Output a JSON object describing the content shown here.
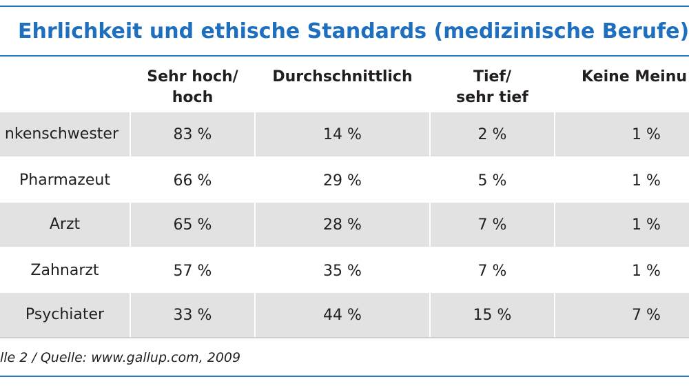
{
  "title": "Ehrlichkeit und ethische Standards (medizinische Berufe)",
  "table": {
    "columns": [
      "Sehr hoch/\nhoch",
      "Durchschnittlich",
      "Tief/\nsehr tief",
      "Keine Meinu"
    ],
    "rows": [
      {
        "label": "nkenschwester",
        "values": [
          "83 %",
          "14 %",
          "2 %",
          "1 %"
        ]
      },
      {
        "label": "Pharmazeut",
        "values": [
          "66 %",
          "29 %",
          "5 %",
          "1 %"
        ]
      },
      {
        "label": "Arzt",
        "values": [
          "65 %",
          "28 %",
          "7 %",
          "1 %"
        ]
      },
      {
        "label": "Zahnarzt",
        "values": [
          "57 %",
          "35 %",
          "7 %",
          "1 %"
        ]
      },
      {
        "label": "Psychiater",
        "values": [
          "33 %",
          "44 %",
          "15 %",
          "7 %"
        ]
      }
    ]
  },
  "source": "lle 2 / Quelle: www.gallup.com, 2009",
  "colors": {
    "accent": "#1f79c7",
    "title": "#1f6fbf",
    "band": "#e2e2e2"
  }
}
